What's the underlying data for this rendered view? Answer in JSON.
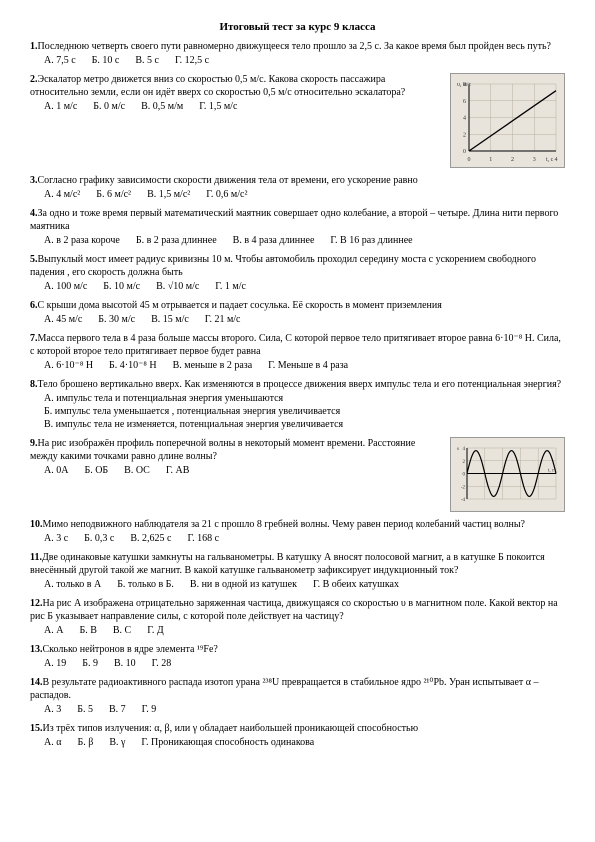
{
  "title": "Итоговый тест за курс 9 класса",
  "questions": [
    {
      "num": "1.",
      "text": "Последнюю четверть своего пути равномерно движущееся тело прошло за 2,5 с. За какое время был пройден весь путь?",
      "answers": [
        "А. 7,5 с",
        "Б. 10 с",
        "В. 5 с",
        "Г. 12,5 с"
      ]
    },
    {
      "num": "2.",
      "text": "Эскалатор метро движется вниз со скоростью 0,5 м/с. Какова скорость пассажира относительно земли, если он идёт вверх со скоростью 0,5 м/с относительно эскалатора?",
      "answers": [
        "А. 1 м/с",
        "Б. 0 м/с",
        "В. 0,5 м/м",
        "Г. 1,5 м/с"
      ],
      "has_graph": true
    },
    {
      "num": "3.",
      "text": "Согласно графику зависимости скорости движения тела от времени, его ускорение равно",
      "answers": [
        "А. 4 м/с²",
        "Б. 6 м/с²",
        "В. 1,5 м/с²",
        "Г. 0,6 м/с²"
      ]
    },
    {
      "num": "4.",
      "text": "За одно и тоже время первый математический маятник совершает одно колебание, а второй – четыре. Длина нити первого маятника",
      "answers": [
        "А. в 2 раза короче",
        "Б. в 2 раза длиннее",
        "В. в 4 раза длиннее",
        "Г. В 16 раз длиннее"
      ]
    },
    {
      "num": "5.",
      "text": "Выпуклый мост имеет радиус кривизны  10 м. Чтобы автомобиль проходил середину моста с ускорением свободного падения , его скорость должна быть",
      "answers": [
        "А. 100 м/с",
        "Б. 10 м/с",
        "В. √10 м/с",
        "Г. 1 м/с"
      ]
    },
    {
      "num": "6.",
      "text": "С крыши дома высотой 45 м отрывается и падает сосулька. Её скорость в момент приземления",
      "answers": [
        "А. 45 м/с",
        "Б. 30 м/с",
        "В. 15 м/с",
        "Г. 21 м/с"
      ]
    },
    {
      "num": "7.",
      "text": "Масса первого тела в 4 раза больше массы второго. Сила, С которой первое тело притягивает второе равна 6·10⁻⁸ Н. Сила, с которой второе тело притягивает первое будет равна",
      "answers": [
        "А. 6·10⁻⁸ Н",
        "Б. 4·10⁻⁸ Н",
        "В. меньше в 2 раза",
        "Г. Меньше в 4 раза"
      ]
    },
    {
      "num": "8.",
      "text": "Тело брошено вертикально вверх. Как изменяются в процессе движения вверх импульс тела и его потенциальная энергия?",
      "answers_block": [
        "А. импульс тела и потенциальная энергия уменьшаются",
        "Б. импульс тела уменьшается , потенциальная энергия увеличивается",
        "В. импульс тела не изменяется, потенциальная энергия увеличивается"
      ]
    },
    {
      "num": "9.",
      "text": "На рис изображён профиль поперечной волны в некоторый момент времени. Расстояние между какими точками равно длине волны?",
      "answers": [
        "А. 0А",
        "Б. ОБ",
        "В. ОС",
        "Г. АВ"
      ],
      "has_wave": true
    },
    {
      "num": "10.",
      "text": "Мимо неподвижного наблюдателя за 21 с прошло 8 гребней волны. Чему равен период колебаний частиц волны?",
      "answers": [
        "А. 3 с",
        "Б. 0,3 с",
        "В. 2,625 с",
        "Г. 168 с"
      ]
    },
    {
      "num": "11.",
      "text": "Две одинаковые катушки замкнуты на гальванометры. В катушку А вносят полосовой магнит, а в катушке Б покоится внесённый другой такой же магнит. В какой катушке гальванометр зафиксирует индукционный ток?",
      "answers": [
        "А. только в А",
        "Б. только в Б.",
        "В. ни в одной из катушек",
        "Г. В обеих катушках"
      ]
    },
    {
      "num": "12.",
      "text": "На рис А изображена отрицательно заряженная частица, движущаяся со скоростью υ в магнитном поле. Какой вектор на рис Б указывает направление силы, с которой поле действует на частицу?",
      "answers": [
        "А. А",
        "Б. В",
        "В. С",
        "Г. Д"
      ]
    },
    {
      "num": "13.",
      "text": "Сколько нейтронов в ядре элемента ¹⁹Fe?",
      "answers": [
        "А. 19",
        "Б. 9",
        "В. 10",
        "Г. 28"
      ]
    },
    {
      "num": "14.",
      "text": "В результате радиоактивного распада изотоп урана ²³⁸U превращается в стабильное ядро ²¹⁰Pb. Уран испытывает α – распадов.",
      "answers": [
        "А. 3",
        "Б. 5",
        "В. 7",
        "Г. 9"
      ]
    },
    {
      "num": "15.",
      "text": "Из трёх типов излучения: α, β, или γ обладает наибольшей проникающей способностью",
      "answers": [
        "А. α",
        "Б. β",
        "В. γ",
        "Г. Проникающая способность одинакова"
      ]
    }
  ],
  "graph1": {
    "xlabel": "t, с",
    "ylabel": "υ, м/с",
    "xlim": [
      0,
      5
    ],
    "ylim": [
      0,
      8
    ],
    "xticks": [
      0,
      1,
      2,
      3,
      4
    ],
    "yticks": [
      0,
      2,
      4,
      6
    ],
    "line": [
      [
        0,
        0
      ],
      [
        4.5,
        7
      ]
    ],
    "bg_color": "#e8e4dc",
    "grid_color": "#b8b0a0",
    "line_color": "#000"
  },
  "graph2": {
    "xlabel": "t, с",
    "ylabel": "s",
    "amplitude": 4,
    "periods": 2.5,
    "yticks": [
      -4,
      -2,
      0,
      2,
      4
    ],
    "bg_color": "#e8e4dc",
    "grid_color": "#b8b0a0",
    "line_color": "#000"
  }
}
